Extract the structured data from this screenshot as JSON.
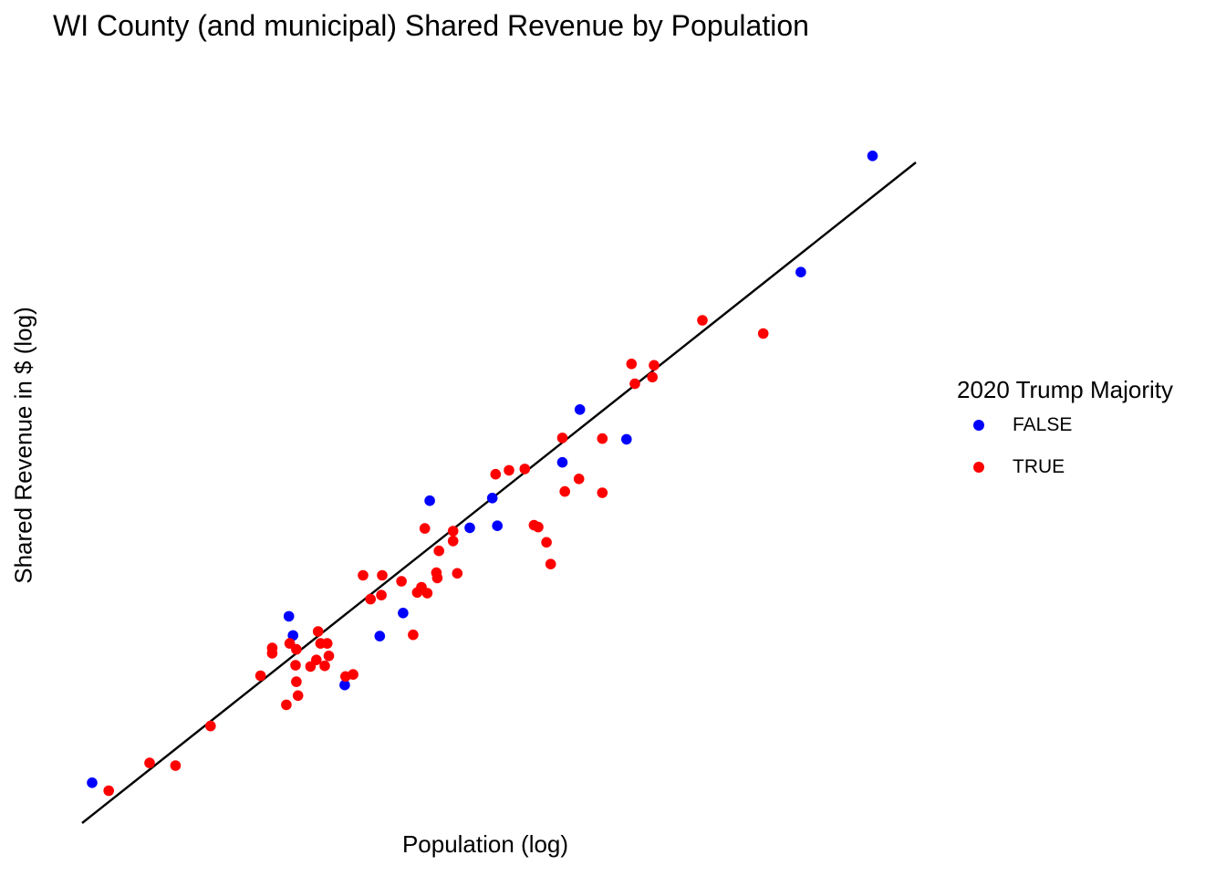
{
  "chart_data": {
    "type": "scatter",
    "title": "WI County (and municipal) Shared Revenue by Population",
    "xlabel": "Population (log)",
    "ylabel": "Shared Revenue in $ (log)",
    "x_scale": "log",
    "y_scale": "log",
    "x_tick_labels_shown": false,
    "y_tick_labels_shown": false,
    "grid": false,
    "xlim": [
      0,
      1
    ],
    "ylim": [
      0,
      1
    ],
    "legend": {
      "title": "2020 Trump Majority",
      "position": "right",
      "entries": [
        {
          "label": "FALSE",
          "color": "#0000ff"
        },
        {
          "label": "TRUE",
          "color": "#ff0000"
        }
      ]
    },
    "trend_line": {
      "type": "linear fit",
      "color": "#000000",
      "points": [
        [
          0.0,
          0.0
        ],
        [
          1.0,
          1.0
        ]
      ]
    },
    "series": [
      {
        "name": "FALSE",
        "color": "#0000ff",
        "points": [
          [
            0.012,
            0.061
          ],
          [
            0.248,
            0.313
          ],
          [
            0.253,
            0.284
          ],
          [
            0.315,
            0.209
          ],
          [
            0.357,
            0.283
          ],
          [
            0.385,
            0.318
          ],
          [
            0.417,
            0.488
          ],
          [
            0.465,
            0.447
          ],
          [
            0.492,
            0.492
          ],
          [
            0.498,
            0.45
          ],
          [
            0.576,
            0.546
          ],
          [
            0.597,
            0.626
          ],
          [
            0.653,
            0.581
          ],
          [
            0.862,
            0.834
          ],
          [
            0.948,
            1.01
          ]
        ]
      },
      {
        "name": "TRUE",
        "color": "#ff0000",
        "points": [
          [
            0.032,
            0.049
          ],
          [
            0.081,
            0.091
          ],
          [
            0.112,
            0.087
          ],
          [
            0.154,
            0.147
          ],
          [
            0.214,
            0.223
          ],
          [
            0.228,
            0.257
          ],
          [
            0.228,
            0.265
          ],
          [
            0.245,
            0.179
          ],
          [
            0.249,
            0.272
          ],
          [
            0.256,
            0.239
          ],
          [
            0.257,
            0.214
          ],
          [
            0.257,
            0.263
          ],
          [
            0.259,
            0.193
          ],
          [
            0.274,
            0.237
          ],
          [
            0.281,
            0.247
          ],
          [
            0.283,
            0.29
          ],
          [
            0.286,
            0.272
          ],
          [
            0.291,
            0.238
          ],
          [
            0.294,
            0.272
          ],
          [
            0.296,
            0.253
          ],
          [
            0.316,
            0.222
          ],
          [
            0.325,
            0.225
          ],
          [
            0.337,
            0.375
          ],
          [
            0.346,
            0.339
          ],
          [
            0.359,
            0.345
          ],
          [
            0.36,
            0.375
          ],
          [
            0.383,
            0.366
          ],
          [
            0.397,
            0.285
          ],
          [
            0.402,
            0.349
          ],
          [
            0.407,
            0.357
          ],
          [
            0.411,
            0.446
          ],
          [
            0.414,
            0.348
          ],
          [
            0.425,
            0.379
          ],
          [
            0.426,
            0.371
          ],
          [
            0.428,
            0.412
          ],
          [
            0.445,
            0.427
          ],
          [
            0.445,
            0.442
          ],
          [
            0.45,
            0.378
          ],
          [
            0.496,
            0.528
          ],
          [
            0.512,
            0.534
          ],
          [
            0.531,
            0.536
          ],
          [
            0.542,
            0.451
          ],
          [
            0.547,
            0.448
          ],
          [
            0.557,
            0.425
          ],
          [
            0.562,
            0.392
          ],
          [
            0.576,
            0.583
          ],
          [
            0.579,
            0.502
          ],
          [
            0.596,
            0.521
          ],
          [
            0.624,
            0.582
          ],
          [
            0.624,
            0.5
          ],
          [
            0.659,
            0.695
          ],
          [
            0.663,
            0.665
          ],
          [
            0.684,
            0.675
          ],
          [
            0.686,
            0.693
          ],
          [
            0.744,
            0.761
          ],
          [
            0.817,
            0.741
          ]
        ]
      }
    ]
  }
}
